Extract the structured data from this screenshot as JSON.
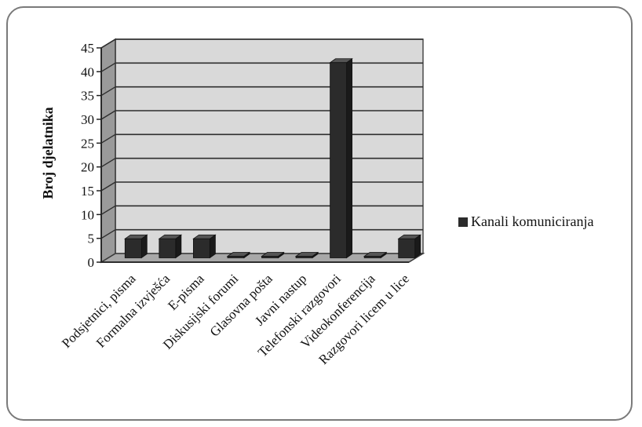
{
  "chart_data": {
    "type": "bar",
    "categories": [
      "Podsjetnici, pisma",
      "Formalna izvješća",
      "E-pisma",
      "Diskusijski forumi",
      "Glasovna pošta",
      "Javni nastup",
      "Telefonski razgovori",
      "Videokonferencija",
      "Razgovori licem u lice"
    ],
    "series": [
      {
        "name": "Kanali komuniciranja",
        "values": [
          4,
          4,
          4,
          0,
          0,
          0,
          41,
          0,
          4
        ],
        "color": "#2b2b2b"
      }
    ],
    "title": "",
    "xlabel": "",
    "ylabel": "Broj djelatnika",
    "ylim": [
      0,
      45
    ],
    "yticks": [
      0,
      5,
      10,
      15,
      20,
      25,
      30,
      35,
      40,
      45
    ],
    "grid": true,
    "legend_position": "right",
    "style": "3d-column"
  }
}
